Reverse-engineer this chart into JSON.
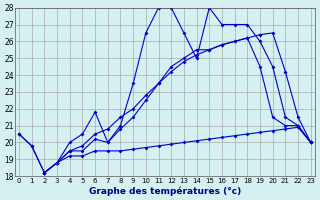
{
  "title": "Graphe des températures (°c)",
  "bg_color": "#d4f0f0",
  "grid_color": "#aaaaaa",
  "line_color": "#0000cc",
  "xlim": [
    0,
    23
  ],
  "ylim": [
    18,
    28
  ],
  "xticks": [
    0,
    1,
    2,
    3,
    4,
    5,
    6,
    7,
    8,
    9,
    10,
    11,
    12,
    13,
    14,
    15,
    16,
    17,
    18,
    19,
    20,
    21,
    22,
    23
  ],
  "yticks": [
    18,
    19,
    20,
    21,
    22,
    23,
    24,
    25,
    26,
    27,
    28
  ],
  "series1_x": [
    0,
    1,
    2,
    3,
    4,
    5,
    6,
    7,
    8,
    9,
    10,
    11,
    12,
    13,
    14,
    15,
    16,
    17,
    18,
    19,
    20,
    21,
    22,
    23
  ],
  "series1_y": [
    20.5,
    19.8,
    18.2,
    18.8,
    20.0,
    20.5,
    21.8,
    20.0,
    21.0,
    23.5,
    26.5,
    28.0,
    28.0,
    26.5,
    25.0,
    28.0,
    27.0,
    27.0,
    27.0,
    26.0,
    24.5,
    21.5,
    21.0,
    20.0
  ],
  "series2_x": [
    0,
    1,
    2,
    3,
    4,
    5,
    6,
    7,
    8,
    9,
    10,
    11,
    12,
    13,
    14,
    15,
    16,
    17,
    18,
    19,
    20,
    21,
    22,
    23
  ],
  "series2_y": [
    20.5,
    19.8,
    18.2,
    18.8,
    19.5,
    19.5,
    20.2,
    20.0,
    20.8,
    21.5,
    22.5,
    23.5,
    24.5,
    25.0,
    25.5,
    25.5,
    25.8,
    26.0,
    26.2,
    24.5,
    21.5,
    21.0,
    21.0,
    20.0
  ],
  "series3_x": [
    2,
    3,
    4,
    5,
    6,
    7,
    8,
    9,
    10,
    11,
    12,
    13,
    14,
    15,
    16,
    17,
    18,
    19,
    20,
    21,
    22,
    23
  ],
  "series3_y": [
    18.2,
    18.8,
    19.2,
    19.2,
    19.5,
    19.5,
    19.5,
    19.6,
    19.7,
    19.8,
    19.9,
    20.0,
    20.1,
    20.2,
    20.3,
    20.4,
    20.5,
    20.6,
    20.7,
    20.8,
    20.9,
    20.0
  ],
  "series4_x": [
    2,
    3,
    4,
    5,
    6,
    7,
    8,
    9,
    10,
    11,
    12,
    13,
    14,
    15,
    16,
    17,
    18,
    19,
    20,
    21,
    22,
    23
  ],
  "series4_y": [
    18.2,
    18.8,
    19.5,
    19.8,
    20.5,
    20.8,
    21.5,
    22.0,
    22.8,
    23.5,
    24.2,
    24.8,
    25.2,
    25.5,
    25.8,
    26.0,
    26.2,
    26.4,
    26.5,
    24.2,
    21.5,
    20.0
  ]
}
